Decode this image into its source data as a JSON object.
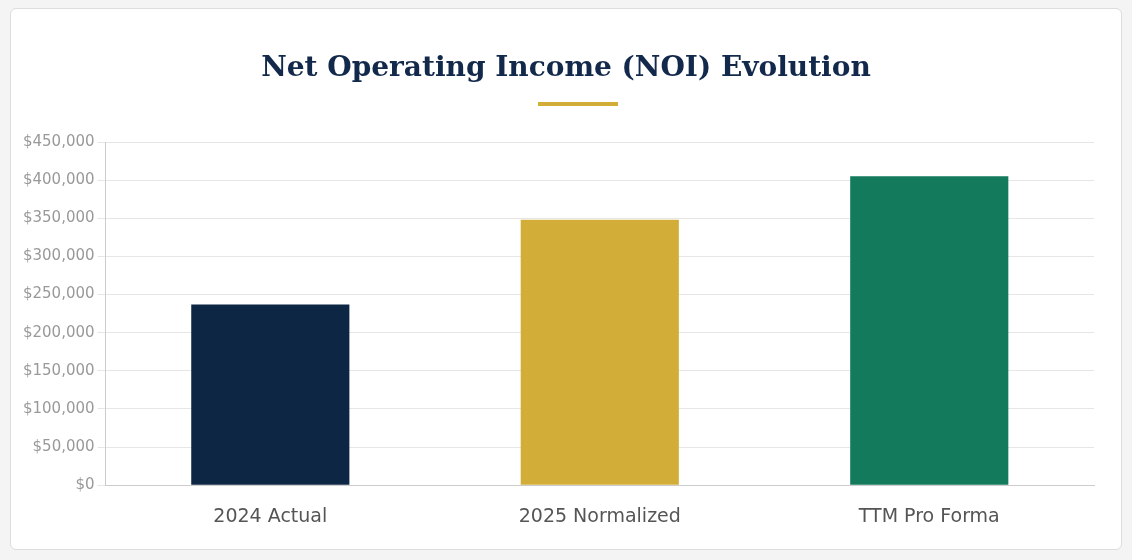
{
  "chart_data": {
    "type": "bar",
    "title": "Net Operating Income (NOI) Evolution",
    "categories": [
      "2024 Actual",
      "2025 Normalized",
      "TTM Pro Forma"
    ],
    "values": [
      237000,
      348000,
      405000
    ],
    "colors": [
      "#0d2644",
      "#d2ae38",
      "#137a5c"
    ],
    "ylim": [
      0,
      450000
    ],
    "yticks": [
      {
        "value": 0,
        "label": "$0"
      },
      {
        "value": 50000,
        "label": "$50,000"
      },
      {
        "value": 100000,
        "label": "$100,000"
      },
      {
        "value": 150000,
        "label": "$150,000"
      },
      {
        "value": 200000,
        "label": "$200,000"
      },
      {
        "value": 250000,
        "label": "$250,000"
      },
      {
        "value": 300000,
        "label": "$300,000"
      },
      {
        "value": 350000,
        "label": "$350,000"
      },
      {
        "value": 400000,
        "label": "$400,000"
      },
      {
        "value": 450000,
        "label": "$450,000"
      }
    ],
    "grid": "y",
    "legend": false
  }
}
